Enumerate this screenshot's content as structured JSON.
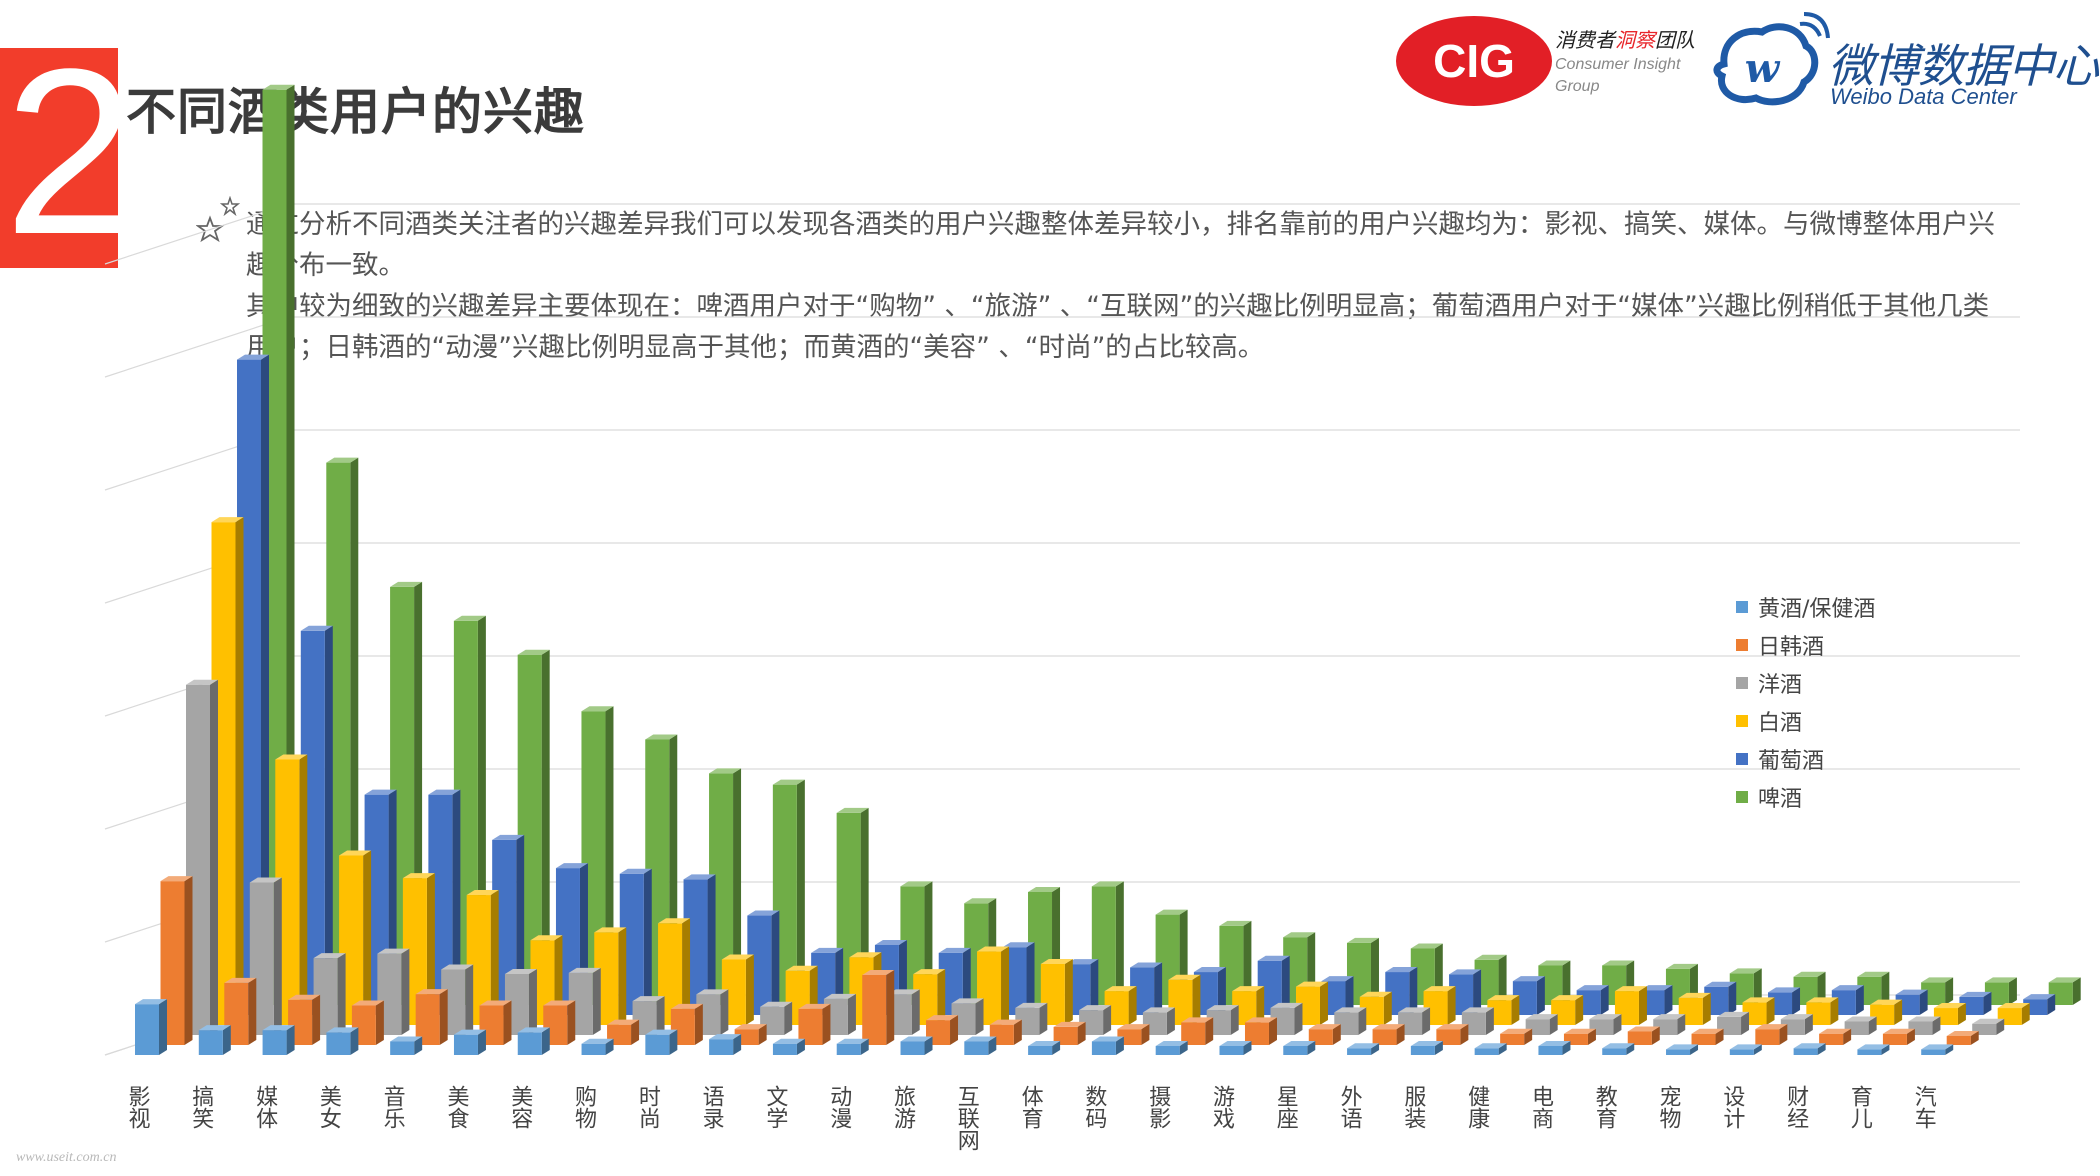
{
  "header": {
    "section_number": "2",
    "title": "不同酒类用户的兴趣"
  },
  "logos": {
    "cig_mark": "CIG",
    "cig_cn_prefix": "消费者",
    "cig_cn_highlight": "洞察",
    "cig_cn_suffix": "团队",
    "cig_en_line1": "Consumer Insight",
    "cig_en_line2": "Group",
    "weibo_cn": "微博数据中心",
    "weibo_en": "Weibo Data Center"
  },
  "description": {
    "para1": "通过分析不同酒类关注者的兴趣差异我们可以发现各酒类的用户兴趣整体差异较小，排名靠前的用户兴趣均为：影视、搞笑、媒体。与微博整体用户兴趣分布一致。",
    "para2": "其中较为细致的兴趣差异主要体现在：啤酒用户对于“购物” 、“旅游” 、“互联网”的兴趣比例明显高；葡萄酒用户对于“媒体”兴趣比例稍低于其他几类用户；日韩酒的“动漫”兴趣比例明显高于其他；而黄酒的“美容” 、“时尚”的占比较高。"
  },
  "watermark": "www.useit.com.cn",
  "colors": {
    "黄酒/保健酒": "#5b9bd5",
    "日韩酒": "#ed7d31",
    "洋酒": "#a5a5a5",
    "白酒": "#ffc000",
    "葡萄酒": "#4472c4",
    "啤酒": "#70ad47",
    "brand_red": "#f23d2b",
    "gridline": "#d9d9d9"
  },
  "chart_data": {
    "type": "bar",
    "variant": "3d-column",
    "title": "",
    "xlabel": "",
    "ylabel": "",
    "ylim": [
      0,
      10
    ],
    "gridlines": true,
    "legend_position": "right",
    "categories": [
      "影视",
      "搞笑",
      "媒体",
      "美女",
      "音乐",
      "美食",
      "美容",
      "购物",
      "时尚",
      "语录",
      "文学",
      "动漫",
      "旅游",
      "互联网",
      "体育",
      "数码",
      "摄影",
      "游戏",
      "星座",
      "外语",
      "服装",
      "健康",
      "电商",
      "教育",
      "宠物",
      "设计",
      "财经",
      "育儿",
      "汽车"
    ],
    "series": [
      {
        "name": "黄酒/保健酒",
        "values": [
          0.45,
          0.22,
          0.22,
          0.2,
          0.12,
          0.18,
          0.2,
          0.1,
          0.18,
          0.14,
          0.1,
          0.1,
          0.12,
          0.12,
          0.08,
          0.12,
          0.08,
          0.08,
          0.08,
          0.06,
          0.08,
          0.06,
          0.08,
          0.06,
          0.05,
          0.05,
          0.06,
          0.05,
          0.05
        ]
      },
      {
        "name": "日韩酒",
        "values": [
          1.45,
          0.55,
          0.4,
          0.35,
          0.45,
          0.35,
          0.35,
          0.18,
          0.32,
          0.14,
          0.32,
          0.62,
          0.22,
          0.18,
          0.16,
          0.14,
          0.2,
          0.2,
          0.14,
          0.14,
          0.14,
          0.1,
          0.1,
          0.12,
          0.1,
          0.14,
          0.1,
          0.1,
          0.08
        ]
      },
      {
        "name": "洋酒",
        "values": [
          3.1,
          1.35,
          0.68,
          0.72,
          0.58,
          0.54,
          0.55,
          0.3,
          0.36,
          0.25,
          0.32,
          0.36,
          0.28,
          0.24,
          0.22,
          0.2,
          0.22,
          0.24,
          0.2,
          0.2,
          0.2,
          0.14,
          0.14,
          0.14,
          0.16,
          0.14,
          0.12,
          0.12,
          0.1
        ]
      },
      {
        "name": "白酒",
        "values": [
          4.45,
          2.35,
          1.5,
          1.3,
          1.15,
          0.75,
          0.82,
          0.9,
          0.58,
          0.48,
          0.6,
          0.45,
          0.65,
          0.54,
          0.3,
          0.4,
          0.3,
          0.34,
          0.25,
          0.3,
          0.22,
          0.22,
          0.3,
          0.24,
          0.2,
          0.2,
          0.18,
          0.15,
          0.15
        ]
      },
      {
        "name": "葡萄酒",
        "values": [
          5.8,
          3.4,
          1.95,
          1.95,
          1.55,
          1.3,
          1.25,
          1.2,
          0.88,
          0.55,
          0.62,
          0.55,
          0.6,
          0.45,
          0.42,
          0.38,
          0.48,
          0.3,
          0.38,
          0.36,
          0.3,
          0.22,
          0.22,
          0.25,
          0.2,
          0.22,
          0.18,
          0.16,
          0.14
        ]
      },
      {
        "name": "啤酒",
        "values": [
          8.1,
          4.8,
          3.7,
          3.4,
          3.1,
          2.6,
          2.35,
          2.05,
          1.95,
          1.7,
          1.05,
          0.9,
          1.0,
          1.05,
          0.8,
          0.7,
          0.6,
          0.55,
          0.5,
          0.4,
          0.35,
          0.35,
          0.32,
          0.28,
          0.25,
          0.25,
          0.2,
          0.2,
          0.2
        ]
      }
    ]
  }
}
